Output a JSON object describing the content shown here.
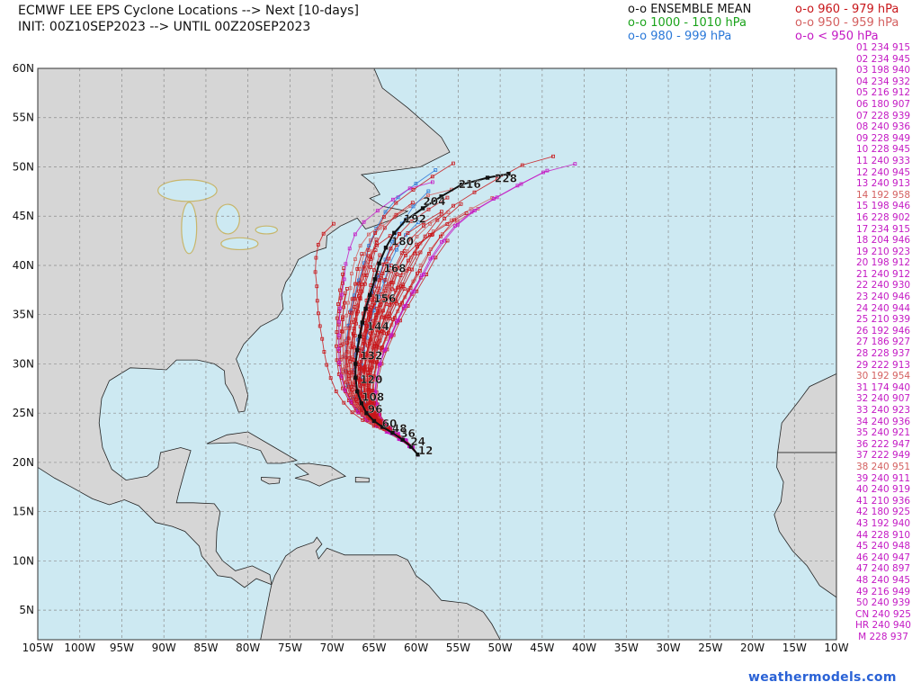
{
  "header": {
    "title_line1": "ECMWF LEE EPS Cyclone Locations --> Next [10-days]",
    "title_line2": "INIT: 00Z10SEP2023 --> UNTIL 00Z20SEP2023"
  },
  "legend": [
    {
      "text": "o-o ENSEMBLE MEAN",
      "color": "#111111"
    },
    {
      "text": "o-o 960 - 979 hPa",
      "color": "#c8161a"
    },
    {
      "text": "o-o 1000 - 1010 hPa",
      "color": "#1aa31a"
    },
    {
      "text": "o-o 950 - 959 hPa",
      "color": "#d46060"
    },
    {
      "text": "o-o 980 - 999 hPa",
      "color": "#2a78d8"
    },
    {
      "text": "o-o < 950 hPa",
      "color": "#c419c4"
    }
  ],
  "members": [
    {
      "text": "01 234 915",
      "color": "#c419c4"
    },
    {
      "text": "02 234 945",
      "color": "#c419c4"
    },
    {
      "text": "03 198 940",
      "color": "#c419c4"
    },
    {
      "text": "04 234 932",
      "color": "#c419c4"
    },
    {
      "text": "05 216 912",
      "color": "#c419c4"
    },
    {
      "text": "06 180 907",
      "color": "#c419c4"
    },
    {
      "text": "07 228 939",
      "color": "#c419c4"
    },
    {
      "text": "08 240 936",
      "color": "#c419c4"
    },
    {
      "text": "09 228 949",
      "color": "#c419c4"
    },
    {
      "text": "10 228 945",
      "color": "#c419c4"
    },
    {
      "text": "11 240 933",
      "color": "#c419c4"
    },
    {
      "text": "12 240 945",
      "color": "#c419c4"
    },
    {
      "text": "13 240 913",
      "color": "#c419c4"
    },
    {
      "text": "14 192 958",
      "color": "#d46060"
    },
    {
      "text": "15 198 946",
      "color": "#c419c4"
    },
    {
      "text": "16 228 902",
      "color": "#c419c4"
    },
    {
      "text": "17 234 915",
      "color": "#c419c4"
    },
    {
      "text": "18 204 946",
      "color": "#c419c4"
    },
    {
      "text": "19 210 923",
      "color": "#c419c4"
    },
    {
      "text": "20 198 912",
      "color": "#c419c4"
    },
    {
      "text": "21 240 912",
      "color": "#c419c4"
    },
    {
      "text": "22 240 930",
      "color": "#c419c4"
    },
    {
      "text": "23 240 946",
      "color": "#c419c4"
    },
    {
      "text": "24 240 944",
      "color": "#c419c4"
    },
    {
      "text": "25 210 939",
      "color": "#c419c4"
    },
    {
      "text": "26 192 946",
      "color": "#c419c4"
    },
    {
      "text": "27 186 927",
      "color": "#c419c4"
    },
    {
      "text": "28 228 937",
      "color": "#c419c4"
    },
    {
      "text": "29 222 913",
      "color": "#c419c4"
    },
    {
      "text": "30 192 954",
      "color": "#d46060"
    },
    {
      "text": "31 174 940",
      "color": "#c419c4"
    },
    {
      "text": "32 240 907",
      "color": "#c419c4"
    },
    {
      "text": "33 240 923",
      "color": "#c419c4"
    },
    {
      "text": "34 240 936",
      "color": "#c419c4"
    },
    {
      "text": "35 240 921",
      "color": "#c419c4"
    },
    {
      "text": "36 222 947",
      "color": "#c419c4"
    },
    {
      "text": "37 222 949",
      "color": "#c419c4"
    },
    {
      "text": "38 240 951",
      "color": "#d46060"
    },
    {
      "text": "39 240 911",
      "color": "#c419c4"
    },
    {
      "text": "40 240 919",
      "color": "#c419c4"
    },
    {
      "text": "41 210 936",
      "color": "#c419c4"
    },
    {
      "text": "42 180 925",
      "color": "#c419c4"
    },
    {
      "text": "43 192 940",
      "color": "#c419c4"
    },
    {
      "text": "44 228 910",
      "color": "#c419c4"
    },
    {
      "text": "45 240 948",
      "color": "#c419c4"
    },
    {
      "text": "46 240 947",
      "color": "#c419c4"
    },
    {
      "text": "47 240 897",
      "color": "#c419c4"
    },
    {
      "text": "48 240 945",
      "color": "#c419c4"
    },
    {
      "text": "49 216 949",
      "color": "#c419c4"
    },
    {
      "text": "50 240 939",
      "color": "#c419c4"
    },
    {
      "text": "CN 240 925",
      "color": "#c419c4"
    },
    {
      "text": "HR 240 940",
      "color": "#c419c4"
    },
    {
      "text": "M 228 937",
      "color": "#c419c4"
    }
  ],
  "map": {
    "lon_range": [
      -105,
      -10
    ],
    "lat_range": [
      2,
      60
    ],
    "lon_ticks": [
      "105W",
      "100W",
      "95W",
      "90W",
      "85W",
      "80W",
      "75W",
      "70W",
      "65W",
      "60W",
      "55W",
      "50W",
      "45W",
      "40W",
      "35W",
      "30W",
      "25W",
      "20W",
      "15W",
      "10W"
    ],
    "lat_ticks": [
      "60N",
      "55N",
      "50N",
      "45N",
      "40N",
      "35N",
      "30N",
      "25N",
      "20N",
      "15N",
      "10N",
      "5N"
    ],
    "colors": {
      "ocean": "#cde9f2",
      "land": "#d6d6d6",
      "lakes": "#c8b56a",
      "grid": "#8c8c8c",
      "mean_track": "#111111",
      "strong": "#c8161a",
      "weak": "#2a78d8",
      "extreme": "#c419c4",
      "medium": "#d46060"
    },
    "ensemble_mean": {
      "track": [
        {
          "lon": -59.8,
          "lat": 20.8
        },
        {
          "lon": -60.6,
          "lat": 21.6
        },
        {
          "lon": -61.6,
          "lat": 22.3
        },
        {
          "lon": -62.8,
          "lat": 23.0
        },
        {
          "lon": -64.0,
          "lat": 23.6
        },
        {
          "lon": -65.0,
          "lat": 24.2
        },
        {
          "lon": -65.9,
          "lat": 25.0
        },
        {
          "lon": -66.5,
          "lat": 26.0
        },
        {
          "lon": -67.0,
          "lat": 27.2
        },
        {
          "lon": -67.2,
          "lat": 28.6
        },
        {
          "lon": -67.2,
          "lat": 30.0
        },
        {
          "lon": -67.0,
          "lat": 31.4
        },
        {
          "lon": -66.7,
          "lat": 32.8
        },
        {
          "lon": -66.4,
          "lat": 34.2
        },
        {
          "lon": -66.0,
          "lat": 35.6
        },
        {
          "lon": -65.5,
          "lat": 37.0
        },
        {
          "lon": -64.9,
          "lat": 38.6
        },
        {
          "lon": -64.4,
          "lat": 40.2
        },
        {
          "lon": -63.6,
          "lat": 41.8
        },
        {
          "lon": -62.6,
          "lat": 43.3
        },
        {
          "lon": -61.2,
          "lat": 44.6
        },
        {
          "lon": -59.2,
          "lat": 45.8
        },
        {
          "lon": -57.0,
          "lat": 47.0
        },
        {
          "lon": -54.6,
          "lat": 48.2
        },
        {
          "lon": -51.5,
          "lat": 48.9
        },
        {
          "lon": -49.0,
          "lat": 49.3
        }
      ],
      "hour_labels": [
        {
          "text": "12",
          "lon": -60.3,
          "lat": 21.2
        },
        {
          "text": "24",
          "lon": -61.2,
          "lat": 22.1
        },
        {
          "text": "36",
          "lon": -62.4,
          "lat": 22.9
        },
        {
          "text": "48",
          "lon": -63.4,
          "lat": 23.4
        },
        {
          "text": "60",
          "lon": -64.6,
          "lat": 23.9
        },
        {
          "text": "96",
          "lon": -66.3,
          "lat": 25.4
        },
        {
          "text": "108",
          "lon": -67.0,
          "lat": 26.6
        },
        {
          "text": "120",
          "lon": -67.2,
          "lat": 28.4
        },
        {
          "text": "132",
          "lon": -67.2,
          "lat": 30.8
        },
        {
          "text": "144",
          "lon": -66.4,
          "lat": 33.8
        },
        {
          "text": "156",
          "lon": -65.6,
          "lat": 36.6
        },
        {
          "text": "168",
          "lon": -64.4,
          "lat": 39.7
        },
        {
          "text": "180",
          "lon": -63.5,
          "lat": 42.4
        },
        {
          "text": "192",
          "lon": -62.0,
          "lat": 44.7
        },
        {
          "text": "204",
          "lon": -59.7,
          "lat": 46.5
        },
        {
          "text": "216",
          "lon": -55.5,
          "lat": 48.2
        },
        {
          "text": "228",
          "lon": -51.2,
          "lat": 48.8
        }
      ]
    }
  },
  "credit": "weathermodels.com"
}
